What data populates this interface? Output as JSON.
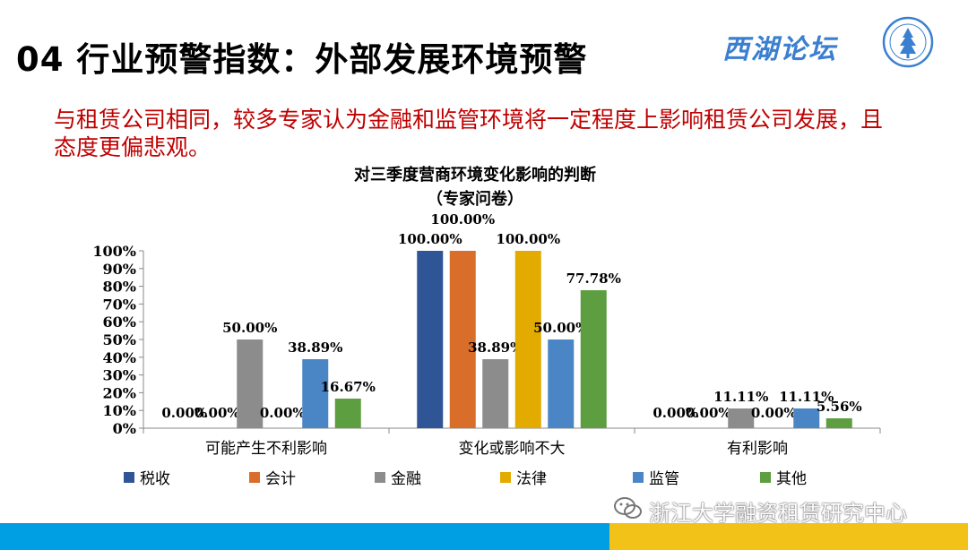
{
  "header": {
    "title": "04 行业预警指数：外部发展环境预警",
    "brand": "西湖论坛"
  },
  "intro_text": "与租赁公司相同，较多专家认为金融和监管环境将一定程度上影响租赁公司发展，且态度更偏悲观。",
  "chart_data": {
    "type": "bar",
    "title": "对三季度营商环境变化影响的判断",
    "subtitle": "（专家问卷）",
    "categories": [
      "可能产生不利影响",
      "变化或影响不大",
      "有利影响"
    ],
    "series": [
      {
        "name": "税收",
        "color": "#2f5597",
        "values": [
          0,
          100,
          0
        ],
        "labels": [
          "0.00%",
          "100.00%",
          "0.00%"
        ]
      },
      {
        "name": "会计",
        "color": "#d96e2a",
        "values": [
          0,
          100,
          0
        ],
        "labels": [
          "0.00%",
          "100.00%",
          "0.00%"
        ]
      },
      {
        "name": "金融",
        "color": "#8c8c8c",
        "values": [
          50,
          38.89,
          11.11
        ],
        "labels": [
          "50.00%",
          "38.89%",
          "11.11%"
        ]
      },
      {
        "name": "法律",
        "color": "#e3aa00",
        "values": [
          0,
          100,
          0
        ],
        "labels": [
          "0.00%",
          "100.00%",
          "0.00%"
        ]
      },
      {
        "name": "监管",
        "color": "#4a86c6",
        "values": [
          38.89,
          50,
          11.11
        ],
        "labels": [
          "38.89%",
          "50.00%",
          "11.11%"
        ]
      },
      {
        "name": "其他",
        "color": "#5d9e40",
        "values": [
          16.67,
          77.78,
          5.56
        ],
        "labels": [
          "16.67%",
          "77.78%",
          "5.56%"
        ]
      }
    ],
    "yticks": [
      "0%",
      "10%",
      "20%",
      "30%",
      "40%",
      "50%",
      "60%",
      "70%",
      "80%",
      "90%",
      "100%"
    ],
    "ylim": [
      0,
      100
    ],
    "legend_position": "bottom",
    "grid": false
  },
  "footer": {
    "watermark": "浙江大学融资租赁研究中心"
  }
}
